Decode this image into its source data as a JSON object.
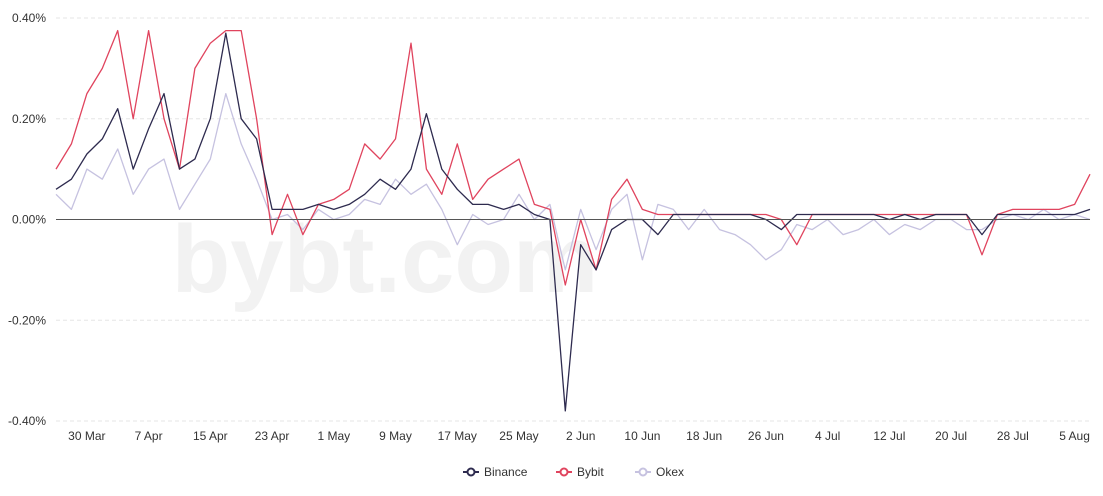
{
  "chart_data": {
    "type": "line",
    "title": "",
    "xlabel": "",
    "ylabel": "",
    "ylim": [
      -0.4,
      0.4
    ],
    "y_ticks": [
      "0.40%",
      "0.20%",
      "0.00%",
      "-0.20%",
      "-0.40%"
    ],
    "y_tick_values": [
      0.4,
      0.2,
      0.0,
      -0.2,
      -0.4
    ],
    "x_ticks": [
      "30 Mar",
      "7 Apr",
      "15 Apr",
      "23 Apr",
      "1 May",
      "9 May",
      "17 May",
      "25 May",
      "2 Jun",
      "10 Jun",
      "18 Jun",
      "26 Jun",
      "4 Jul",
      "12 Jul",
      "20 Jul",
      "28 Jul",
      "5 Aug"
    ],
    "x_range_days": [
      -4,
      130
    ],
    "grid": "horizontal dashed",
    "legend_position": "bottom-center",
    "watermark": "bybt.com",
    "x_days": [
      -4,
      -2,
      0,
      2,
      4,
      6,
      8,
      10,
      12,
      14,
      16,
      18,
      20,
      22,
      24,
      26,
      28,
      30,
      32,
      34,
      36,
      38,
      40,
      42,
      44,
      46,
      48,
      50,
      52,
      54,
      56,
      58,
      60,
      62,
      64,
      66,
      68,
      70,
      72,
      74,
      76,
      78,
      80,
      82,
      84,
      86,
      88,
      90,
      92,
      94,
      96,
      98,
      100,
      102,
      104,
      106,
      108,
      110,
      112,
      114,
      116,
      118,
      120,
      122,
      124,
      126,
      128,
      130
    ],
    "series": [
      {
        "name": "Binance",
        "color": "#2e2b4f",
        "values": [
          0.06,
          0.08,
          0.13,
          0.16,
          0.22,
          0.1,
          0.18,
          0.25,
          0.1,
          0.12,
          0.2,
          0.37,
          0.2,
          0.16,
          0.02,
          0.02,
          0.02,
          0.03,
          0.02,
          0.03,
          0.05,
          0.08,
          0.06,
          0.1,
          0.21,
          0.1,
          0.06,
          0.03,
          0.03,
          0.02,
          0.03,
          0.01,
          0.0,
          -0.38,
          -0.05,
          -0.1,
          -0.02,
          0.0,
          0.0,
          -0.03,
          0.01,
          0.01,
          0.01,
          0.01,
          0.01,
          0.01,
          0.0,
          -0.02,
          0.01,
          0.01,
          0.01,
          0.01,
          0.01,
          0.01,
          0.0,
          0.01,
          0.0,
          0.01,
          0.01,
          0.01,
          -0.03,
          0.01,
          0.01,
          0.01,
          0.01,
          0.01,
          0.01,
          0.02
        ]
      },
      {
        "name": "Bybit",
        "color": "#e0445e",
        "values": [
          0.1,
          0.15,
          0.25,
          0.3,
          0.375,
          0.2,
          0.375,
          0.2,
          0.1,
          0.3,
          0.35,
          0.375,
          0.375,
          0.2,
          -0.03,
          0.05,
          -0.03,
          0.03,
          0.04,
          0.06,
          0.15,
          0.12,
          0.16,
          0.35,
          0.1,
          0.05,
          0.15,
          0.04,
          0.08,
          0.1,
          0.12,
          0.03,
          0.02,
          -0.13,
          0.0,
          -0.1,
          0.04,
          0.08,
          0.02,
          0.01,
          0.01,
          0.01,
          0.01,
          0.01,
          0.01,
          0.01,
          0.01,
          0.0,
          -0.05,
          0.01,
          0.01,
          0.01,
          0.01,
          0.01,
          0.01,
          0.01,
          0.01,
          0.01,
          0.01,
          0.01,
          -0.07,
          0.01,
          0.02,
          0.02,
          0.02,
          0.02,
          0.03,
          0.09
        ]
      },
      {
        "name": "Okex",
        "color": "#c6c2e0",
        "values": [
          0.05,
          0.02,
          0.1,
          0.08,
          0.14,
          0.05,
          0.1,
          0.12,
          0.02,
          0.07,
          0.12,
          0.25,
          0.15,
          0.08,
          0.0,
          0.01,
          -0.02,
          0.02,
          0.0,
          0.01,
          0.04,
          0.03,
          0.08,
          0.05,
          0.07,
          0.02,
          -0.05,
          0.01,
          -0.01,
          0.0,
          0.05,
          0.0,
          0.03,
          -0.1,
          0.02,
          -0.06,
          0.02,
          0.05,
          -0.08,
          0.03,
          0.02,
          -0.02,
          0.02,
          -0.02,
          -0.03,
          -0.05,
          -0.08,
          -0.06,
          -0.01,
          -0.02,
          0.0,
          -0.03,
          -0.02,
          0.0,
          -0.03,
          -0.01,
          -0.02,
          0.0,
          0.0,
          -0.02,
          -0.02,
          0.0,
          0.01,
          0.0,
          0.02,
          0.0,
          0.01,
          0.0
        ]
      }
    ]
  }
}
